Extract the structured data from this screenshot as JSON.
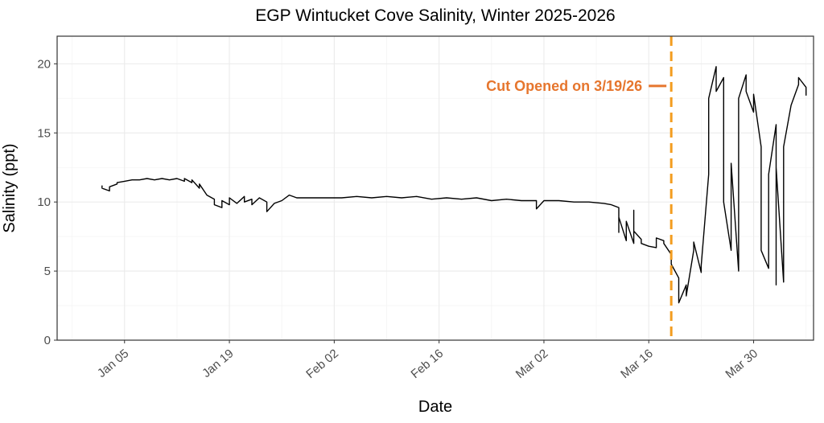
{
  "chart_data": {
    "type": "line",
    "title": "EGP Wintucket Cove Salinity, Winter 2025-2026",
    "xlabel": "Date",
    "ylabel": "Salinity (ppt)",
    "x_tick_labels": [
      "Jan 05",
      "Jan 19",
      "Feb 02",
      "Feb 16",
      "Mar 02",
      "Mar 16",
      "Mar 30"
    ],
    "x_tick_dates": [
      "2026-01-05",
      "2026-01-19",
      "2026-02-02",
      "2026-02-16",
      "2026-03-02",
      "2026-03-16",
      "2026-03-30"
    ],
    "xlim": [
      "2025-12-27",
      "2026-04-07"
    ],
    "ylim": [
      0,
      22
    ],
    "y_ticks": [
      0,
      5,
      10,
      15,
      20
    ],
    "grid": true,
    "colors": {
      "line": "#000000",
      "annotation": "#e6762e",
      "cut_line": "#f39c1f"
    },
    "annotation": {
      "text": "Cut Opened on 3/19/26",
      "date": "2026-03-19"
    },
    "series": [
      {
        "points": [
          [
            "2026-01-02",
            11.2
          ],
          [
            "2026-01-02",
            11.0
          ],
          [
            "2026-01-03",
            10.8
          ],
          [
            "2026-01-03",
            11.1
          ],
          [
            "2026-01-04",
            11.3
          ],
          [
            "2026-01-04",
            11.4
          ],
          [
            "2026-01-05",
            11.5
          ],
          [
            "2026-01-06",
            11.6
          ],
          [
            "2026-01-07",
            11.6
          ],
          [
            "2026-01-08",
            11.7
          ],
          [
            "2026-01-09",
            11.6
          ],
          [
            "2026-01-10",
            11.7
          ],
          [
            "2026-01-11",
            11.6
          ],
          [
            "2026-01-12",
            11.7
          ],
          [
            "2026-01-13",
            11.5
          ],
          [
            "2026-01-13",
            11.7
          ],
          [
            "2026-01-14",
            11.4
          ],
          [
            "2026-01-14",
            11.6
          ],
          [
            "2026-01-15",
            11.0
          ],
          [
            "2026-01-15",
            11.3
          ],
          [
            "2026-01-16",
            10.5
          ],
          [
            "2026-01-17",
            10.2
          ],
          [
            "2026-01-17",
            9.8
          ],
          [
            "2026-01-18",
            9.6
          ],
          [
            "2026-01-18",
            10.1
          ],
          [
            "2026-01-19",
            9.8
          ],
          [
            "2026-01-19",
            10.3
          ],
          [
            "2026-01-20",
            9.9
          ],
          [
            "2026-01-21",
            10.4
          ],
          [
            "2026-01-21",
            10.0
          ],
          [
            "2026-01-22",
            10.2
          ],
          [
            "2026-01-22",
            9.8
          ],
          [
            "2026-01-23",
            10.3
          ],
          [
            "2026-01-24",
            10.0
          ],
          [
            "2026-01-24",
            9.3
          ],
          [
            "2026-01-25",
            9.9
          ],
          [
            "2026-01-26",
            10.1
          ],
          [
            "2026-01-27",
            10.5
          ],
          [
            "2026-01-28",
            10.3
          ],
          [
            "2026-01-30",
            10.3
          ],
          [
            "2026-02-01",
            10.3
          ],
          [
            "2026-02-03",
            10.3
          ],
          [
            "2026-02-05",
            10.4
          ],
          [
            "2026-02-07",
            10.3
          ],
          [
            "2026-02-09",
            10.4
          ],
          [
            "2026-02-11",
            10.3
          ],
          [
            "2026-02-13",
            10.4
          ],
          [
            "2026-02-15",
            10.2
          ],
          [
            "2026-02-17",
            10.3
          ],
          [
            "2026-02-19",
            10.2
          ],
          [
            "2026-02-21",
            10.3
          ],
          [
            "2026-02-23",
            10.1
          ],
          [
            "2026-02-25",
            10.2
          ],
          [
            "2026-02-27",
            10.1
          ],
          [
            "2026-03-01",
            10.1
          ],
          [
            "2026-03-01",
            9.5
          ],
          [
            "2026-03-02",
            10.1
          ],
          [
            "2026-03-04",
            10.1
          ],
          [
            "2026-03-06",
            10.0
          ],
          [
            "2026-03-08",
            10.0
          ],
          [
            "2026-03-10",
            9.9
          ],
          [
            "2026-03-11",
            9.8
          ],
          [
            "2026-03-12",
            9.6
          ],
          [
            "2026-03-12",
            7.8
          ],
          [
            "2026-03-12",
            8.9
          ],
          [
            "2026-03-13",
            7.2
          ],
          [
            "2026-03-13",
            8.6
          ],
          [
            "2026-03-14",
            7.0
          ],
          [
            "2026-03-14",
            9.4
          ],
          [
            "2026-03-14",
            7.9
          ],
          [
            "2026-03-15",
            7.3
          ],
          [
            "2026-03-15",
            7.0
          ],
          [
            "2026-03-16",
            6.8
          ],
          [
            "2026-03-17",
            6.7
          ],
          [
            "2026-03-17",
            7.4
          ],
          [
            "2026-03-18",
            7.2
          ],
          [
            "2026-03-18",
            7.0
          ],
          [
            "2026-03-19",
            6.2
          ],
          [
            "2026-03-19",
            5.5
          ],
          [
            "2026-03-20",
            4.5
          ],
          [
            "2026-03-20",
            2.7
          ],
          [
            "2026-03-21",
            4.0
          ],
          [
            "2026-03-21",
            3.2
          ],
          [
            "2026-03-22",
            6.5
          ],
          [
            "2026-03-22",
            7.1
          ],
          [
            "2026-03-23",
            4.9
          ],
          [
            "2026-03-23",
            5.4
          ],
          [
            "2026-03-24",
            12.0
          ],
          [
            "2026-03-24",
            17.5
          ],
          [
            "2026-03-25",
            19.8
          ],
          [
            "2026-03-25",
            18.0
          ],
          [
            "2026-03-26",
            19.0
          ],
          [
            "2026-03-26",
            10.0
          ],
          [
            "2026-03-27",
            6.5
          ],
          [
            "2026-03-27",
            12.8
          ],
          [
            "2026-03-28",
            5.0
          ],
          [
            "2026-03-28",
            10.0
          ],
          [
            "2026-03-28",
            17.5
          ],
          [
            "2026-03-29",
            19.2
          ],
          [
            "2026-03-29",
            18.0
          ],
          [
            "2026-03-30",
            16.5
          ],
          [
            "2026-03-30",
            17.8
          ],
          [
            "2026-03-31",
            14.0
          ],
          [
            "2026-03-31",
            6.5
          ],
          [
            "2026-04-01",
            5.2
          ],
          [
            "2026-04-01",
            12.0
          ],
          [
            "2026-04-02",
            15.6
          ],
          [
            "2026-04-02",
            4.0
          ],
          [
            "2026-04-02",
            12.5
          ],
          [
            "2026-04-03",
            4.2
          ],
          [
            "2026-04-03",
            14.0
          ],
          [
            "2026-04-04",
            17.0
          ],
          [
            "2026-04-05",
            18.5
          ],
          [
            "2026-04-05",
            19.0
          ],
          [
            "2026-04-06",
            18.3
          ],
          [
            "2026-04-06",
            17.7
          ]
        ]
      }
    ]
  }
}
